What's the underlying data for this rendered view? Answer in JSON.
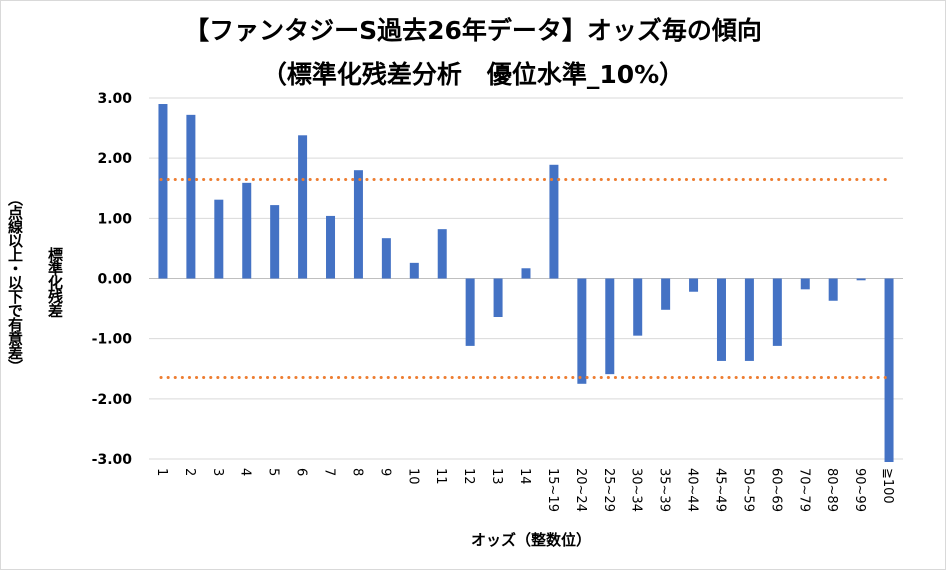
{
  "chart_data": {
    "type": "bar",
    "title_line1": "【ファンタジーS過去26年データ】オッズ毎の傾向",
    "title_line2": "（標準化残差分析　優位水準_10%）",
    "ylabel_line1": "標準化残差",
    "ylabel_line2": "（点線以上・以下で有意差）",
    "xlabel": "オッズ（整数位）",
    "categories": [
      "1",
      "2",
      "3",
      "4",
      "5",
      "6",
      "7",
      "8",
      "9",
      "10",
      "11",
      "12",
      "13",
      "14",
      "15~19",
      "20~24",
      "25~29",
      "30~34",
      "35~39",
      "40~44",
      "45~49",
      "50~59",
      "60~69",
      "70~79",
      "80~89",
      "90~99",
      "≧100"
    ],
    "values": [
      2.9,
      2.72,
      1.31,
      1.59,
      1.22,
      2.38,
      1.04,
      1.8,
      0.67,
      0.26,
      0.82,
      -1.12,
      -0.64,
      0.17,
      1.89,
      -1.75,
      -1.59,
      -0.95,
      -0.52,
      -0.22,
      -1.37,
      -1.37,
      -1.12,
      -0.18,
      -0.37,
      -0.03,
      -3.05
    ],
    "ylim": [
      -3.0,
      3.0
    ],
    "yticks": [
      "3.00",
      "2.00",
      "1.00",
      "0.00",
      "-1.00",
      "-2.00",
      "-3.00"
    ],
    "thresholds": [
      1.645,
      -1.645
    ],
    "colors": {
      "bar": "#4472c4",
      "threshold": "#ed7d31",
      "grid": "#d9d9d9"
    },
    "grid": true,
    "legend": "none"
  }
}
